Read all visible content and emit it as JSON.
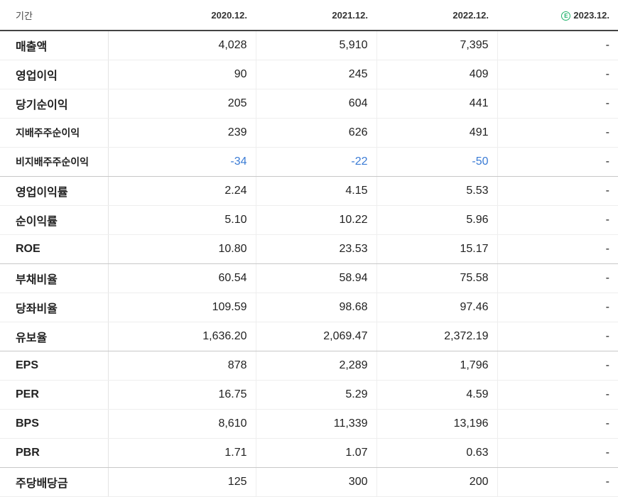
{
  "header": {
    "period_label": "기간",
    "columns": [
      "2020.12.",
      "2021.12.",
      "2022.12.",
      "2023.12."
    ],
    "estimate_icon_glyph": "E"
  },
  "rows": [
    {
      "label": "매출액",
      "values": [
        "4,028",
        "5,910",
        "7,395",
        "-"
      ]
    },
    {
      "label": "영업이익",
      "values": [
        "90",
        "245",
        "409",
        "-"
      ]
    },
    {
      "label": "당기순이익",
      "values": [
        "205",
        "604",
        "441",
        "-"
      ]
    },
    {
      "label": "지배주주순이익",
      "values": [
        "239",
        "626",
        "491",
        "-"
      ]
    },
    {
      "label": "비지배주주순이익",
      "values": [
        "-34",
        "-22",
        "-50",
        "-"
      ]
    },
    {
      "label": "영업이익률",
      "values": [
        "2.24",
        "4.15",
        "5.53",
        "-"
      ]
    },
    {
      "label": "순이익률",
      "values": [
        "5.10",
        "10.22",
        "5.96",
        "-"
      ]
    },
    {
      "label": "ROE",
      "values": [
        "10.80",
        "23.53",
        "15.17",
        "-"
      ]
    },
    {
      "label": "부채비율",
      "values": [
        "60.54",
        "58.94",
        "75.58",
        "-"
      ]
    },
    {
      "label": "당좌비율",
      "values": [
        "109.59",
        "98.68",
        "97.46",
        "-"
      ]
    },
    {
      "label": "유보율",
      "values": [
        "1,636.20",
        "2,069.47",
        "2,372.19",
        "-"
      ]
    },
    {
      "label": "EPS",
      "values": [
        "878",
        "2,289",
        "1,796",
        "-"
      ]
    },
    {
      "label": "PER",
      "values": [
        "16.75",
        "5.29",
        "4.59",
        "-"
      ]
    },
    {
      "label": "BPS",
      "values": [
        "8,610",
        "11,339",
        "13,196",
        "-"
      ]
    },
    {
      "label": "PBR",
      "values": [
        "1.71",
        "1.07",
        "0.63",
        "-"
      ]
    },
    {
      "label": "주당배당금",
      "values": [
        "125",
        "300",
        "200",
        "-"
      ]
    }
  ],
  "colors": {
    "negative": "#3a7bd5",
    "estimate": "#1fb26b"
  }
}
